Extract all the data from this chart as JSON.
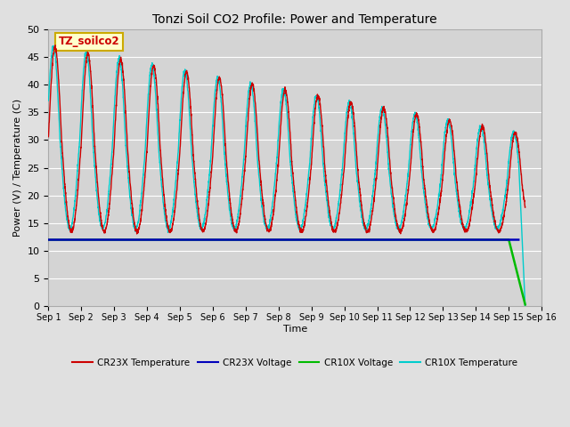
{
  "title": "Tonzi Soil CO2 Profile: Power and Temperature",
  "ylabel": "Power (V) / Temperature (C)",
  "xlabel": "Time",
  "ylim": [
    0,
    50
  ],
  "xlim": [
    0,
    15
  ],
  "xtick_labels": [
    "Sep 1",
    "Sep 2",
    "Sep 3",
    "Sep 4",
    "Sep 5",
    "Sep 6",
    "Sep 7",
    "Sep 8",
    "Sep 9",
    "Sep 10",
    "Sep 11",
    "Sep 12",
    "Sep 13",
    "Sep 14",
    "Sep 15",
    "Sep 16"
  ],
  "xtick_positions": [
    0,
    1,
    2,
    3,
    4,
    5,
    6,
    7,
    8,
    9,
    10,
    11,
    12,
    13,
    14,
    15
  ],
  "fig_facecolor": "#e0e0e0",
  "plot_bg_color": "#d4d4d4",
  "grid_color": "#ffffff",
  "annotation_text": "TZ_soilco2",
  "annotation_fg": "#cc0000",
  "annotation_bg": "#ffffcc",
  "annotation_border": "#ccaa00",
  "cr23x_temp_color": "#cc0000",
  "cr23x_volt_color": "#0000bb",
  "cr10x_volt_color": "#00bb00",
  "cr10x_temp_color": "#00cccc",
  "volt_level": 12.0,
  "drop_start_day": 14.0,
  "legend_labels": [
    "CR23X Temperature",
    "CR23X Voltage",
    "CR10X Voltage",
    "CR10X Temperature"
  ]
}
